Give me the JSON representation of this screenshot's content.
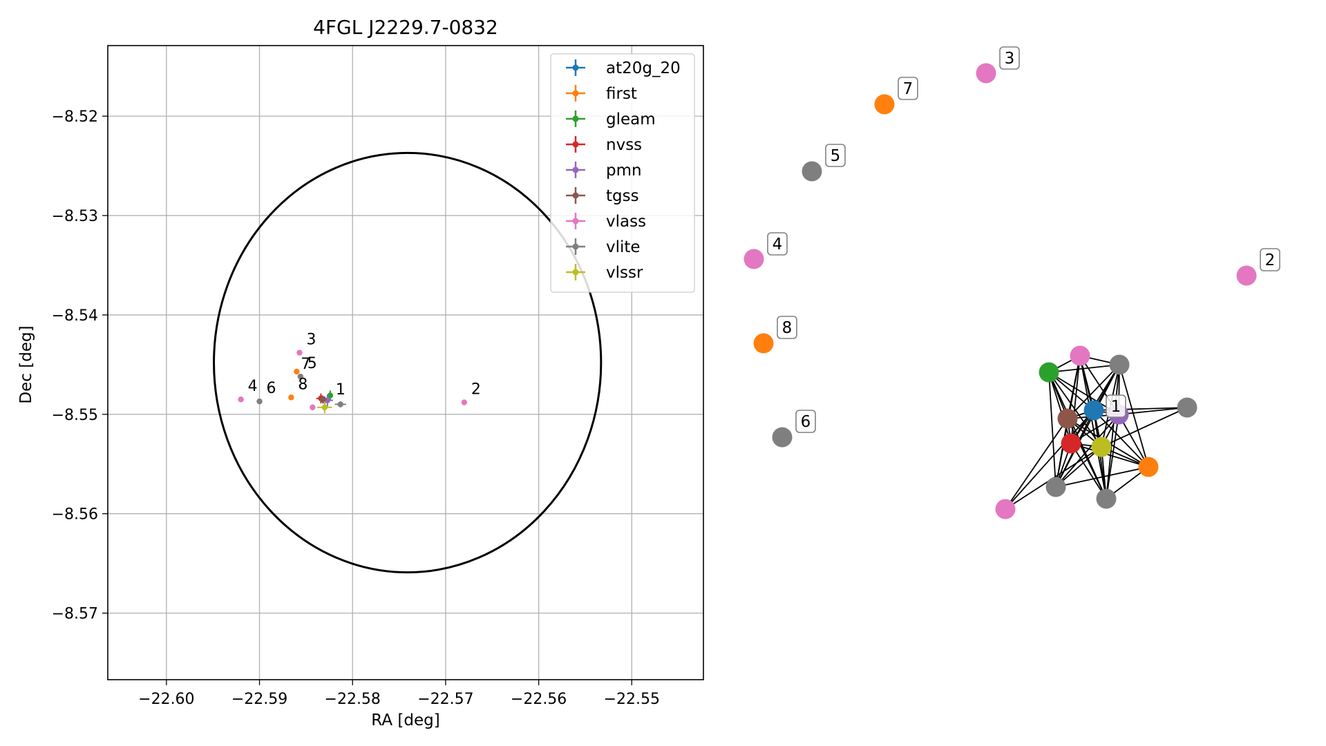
{
  "chart_data": [
    {
      "type": "scatter",
      "title": "4FGL J2229.7-0832",
      "xlabel": "RA [deg]",
      "ylabel": "Dec [deg]",
      "xlim": [
        -22.6063,
        -22.5423
      ],
      "ylim": [
        -8.5767,
        -8.5129
      ],
      "xticks": [
        -22.6,
        -22.59,
        -22.58,
        -22.57,
        -22.56,
        -22.55
      ],
      "xtick_labels": [
        "−22.60",
        "−22.59",
        "−22.58",
        "−22.57",
        "−22.56",
        "−22.55"
      ],
      "yticks": [
        -8.52,
        -8.53,
        -8.54,
        -8.55,
        -8.56,
        -8.57
      ],
      "ytick_labels": [
        "−8.52",
        "−8.53",
        "−8.54",
        "−8.55",
        "−8.56",
        "−8.57"
      ],
      "grid": true,
      "legend_position": "top-right",
      "ellipse": {
        "center": [
          -22.5741,
          -8.5448
        ],
        "ra_half_width": 0.0208,
        "dec_half_height": 0.0211,
        "color": "#000000"
      },
      "series": [
        {
          "name": "at20g_20",
          "color": "#1f77b4",
          "points": [
            {
              "x": -22.583,
              "y": -8.5486,
              "xerr": 0.0004,
              "yerr": 0.0004
            }
          ]
        },
        {
          "name": "first",
          "color": "#ff7f0e",
          "points": [
            {
              "x": -22.586,
              "y": -8.5457
            },
            {
              "x": -22.5866,
              "y": -8.5483
            }
          ]
        },
        {
          "name": "gleam",
          "color": "#2ca02c",
          "points": [
            {
              "x": -22.5824,
              "y": -8.5481,
              "xerr": 0.0003,
              "yerr": 0.0005
            }
          ]
        },
        {
          "name": "nvss",
          "color": "#d62728",
          "points": [
            {
              "x": -22.5834,
              "y": -8.5484,
              "xerr": 0.0005,
              "yerr": 0.0005
            }
          ]
        },
        {
          "name": "pmn",
          "color": "#9467bd",
          "points": [
            {
              "x": -22.5827,
              "y": -8.5486,
              "xerr": 0.0006,
              "yerr": 0.0006
            }
          ]
        },
        {
          "name": "tgss",
          "color": "#8c564b",
          "points": [
            {
              "x": -22.5832,
              "y": -8.5485,
              "xerr": 0.0004,
              "yerr": 0.0004
            }
          ]
        },
        {
          "name": "vlass",
          "color": "#e377c2",
          "points": [
            {
              "x": -22.5857,
              "y": -8.5438
            },
            {
              "x": -22.592,
              "y": -8.5485
            },
            {
              "x": -22.5843,
              "y": -8.5493
            },
            {
              "x": -22.568,
              "y": -8.5488
            }
          ]
        },
        {
          "name": "vlite",
          "color": "#7f7f7f",
          "points": [
            {
              "x": -22.5856,
              "y": -8.5462
            },
            {
              "x": -22.59,
              "y": -8.5487
            },
            {
              "x": -22.5813,
              "y": -8.549,
              "xerr": 0.0006,
              "yerr": 0.0003
            }
          ]
        },
        {
          "name": "vlssr",
          "color": "#bcbd22",
          "points": [
            {
              "x": -22.583,
              "y": -8.5493,
              "xerr": 0.0008,
              "yerr": 0.0006
            }
          ]
        }
      ],
      "annotations": [
        {
          "text": "1",
          "x": -22.5827,
          "y": -8.5484
        },
        {
          "text": "2",
          "x": -22.568,
          "y": -8.5488
        },
        {
          "text": "3",
          "x": -22.5857,
          "y": -8.5438
        },
        {
          "text": "4",
          "x": -22.592,
          "y": -8.5485
        },
        {
          "text": "5",
          "x": -22.5856,
          "y": -8.5462
        },
        {
          "text": "6",
          "x": -22.59,
          "y": -8.5487
        },
        {
          "text": "7",
          "x": -22.586,
          "y": -8.5457
        },
        {
          "text": "8",
          "x": -22.5866,
          "y": -8.5483
        }
      ]
    },
    {
      "type": "network",
      "colors": {
        "at20g_20": "#1f77b4",
        "first": "#ff7f0e",
        "gleam": "#2ca02c",
        "nvss": "#d62728",
        "pmn": "#9467bd",
        "tgss": "#8c564b",
        "vlass": "#e377c2",
        "vlite": "#7f7f7f",
        "vlssr": "#bcbd22",
        "edge": "#000000"
      },
      "labels": [
        "1",
        "2",
        "3",
        "4",
        "5",
        "6",
        "7",
        "8"
      ]
    }
  ]
}
